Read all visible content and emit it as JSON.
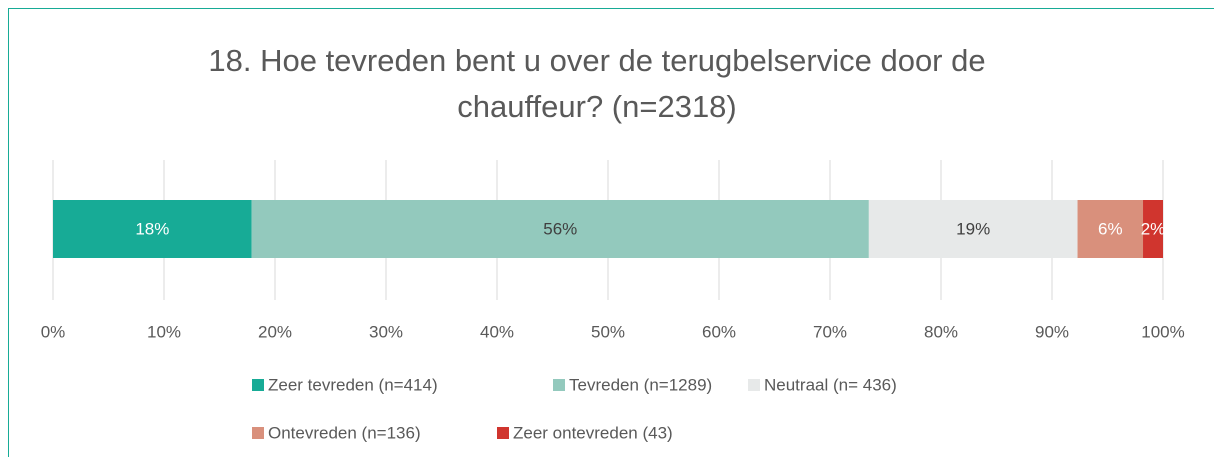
{
  "chart_data": {
    "type": "stacked_bar",
    "orientation": "horizontal",
    "title": "18. Hoe tevreden bent u over de terugbelservice door de chauffeur? (n=2318)",
    "series": [
      {
        "name": "Zeer tevreden (n=414)",
        "color": "#17ab96",
        "values": [
          17.9
        ],
        "value_labels": [
          "18%"
        ]
      },
      {
        "name": "Tevreden (n=1289)",
        "color": "#93c9bd",
        "values": [
          55.6
        ],
        "value_labels": [
          "56%"
        ]
      },
      {
        "name": "Neutraal (n= 436)",
        "color": "#e7e9e9",
        "values": [
          18.8
        ],
        "value_labels": [
          "19%"
        ]
      },
      {
        "name": "Ontevreden (n=136)",
        "color": "#d9907c",
        "values": [
          5.9
        ],
        "value_labels": [
          "6%"
        ]
      },
      {
        "name": "Zeer ontevreden (43)",
        "color": "#d0352e",
        "values": [
          1.8
        ],
        "value_labels": [
          "2%"
        ]
      }
    ],
    "xlim": [
      0,
      100
    ],
    "xticks": [
      {
        "value": 0,
        "label": "0%"
      },
      {
        "value": 10,
        "label": "10%"
      },
      {
        "value": 20,
        "label": "20%"
      },
      {
        "value": 30,
        "label": "30%"
      },
      {
        "value": 40,
        "label": "40%"
      },
      {
        "value": 50,
        "label": "50%"
      },
      {
        "value": 60,
        "label": "60%"
      },
      {
        "value": 70,
        "label": "70%"
      },
      {
        "value": 80,
        "label": "80%"
      },
      {
        "value": 90,
        "label": "90%"
      },
      {
        "value": 100,
        "label": "100%"
      }
    ],
    "grid": true,
    "legend": "bottom"
  }
}
